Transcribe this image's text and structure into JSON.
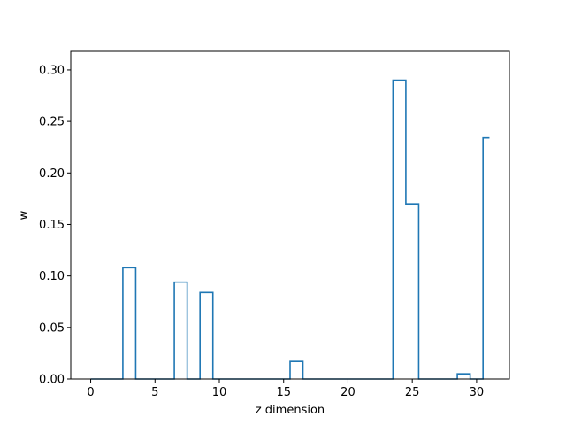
{
  "chart_data": {
    "type": "step",
    "title": "",
    "xlabel": "z dimension",
    "ylabel": "w",
    "xlim": [
      -1.55,
      32.55
    ],
    "ylim": [
      0,
      0.318
    ],
    "xticks": [
      0,
      5,
      10,
      15,
      20,
      25,
      30
    ],
    "yticks": [
      0.0,
      0.05,
      0.1,
      0.15,
      0.2,
      0.25,
      0.3
    ],
    "ytick_labels": [
      "0.00",
      "0.05",
      "0.10",
      "0.15",
      "0.20",
      "0.25",
      "0.30"
    ],
    "step_where": "mid",
    "x": [
      0,
      1,
      2,
      3,
      4,
      5,
      6,
      7,
      8,
      9,
      10,
      11,
      12,
      13,
      14,
      15,
      16,
      17,
      18,
      19,
      20,
      21,
      22,
      23,
      24,
      25,
      26,
      27,
      28,
      29,
      30,
      31
    ],
    "values": [
      0,
      0,
      0,
      0.108,
      0,
      0,
      0,
      0.094,
      0,
      0.084,
      0,
      0,
      0,
      0,
      0,
      0,
      0.017,
      0,
      0,
      0,
      0,
      0,
      0,
      0,
      0.29,
      0.17,
      0,
      0,
      0,
      0.005,
      0,
      0.234
    ],
    "line_color": "#1f77b4",
    "grid": false
  }
}
